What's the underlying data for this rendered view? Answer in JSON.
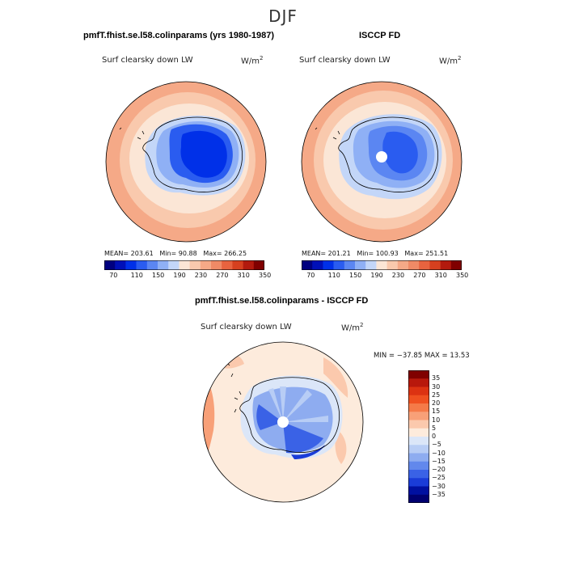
{
  "season": "DJF",
  "panels": [
    {
      "title": "pmfT.fhist.se.l58.colinparams (yrs 1980-1987)",
      "variable": "Surf clearsky down LW",
      "units": "W/m",
      "units_exp": "2",
      "stats": {
        "mean_label": "MEAN=",
        "mean": "203.61",
        "min_label": "Min=",
        "min": "90.88",
        "max_label": "Max=",
        "max": "266.25"
      },
      "colorbar_ticks": [
        "70",
        "110",
        "150",
        "190",
        "230",
        "270",
        "310",
        "350"
      ]
    },
    {
      "title": "ISCCP FD",
      "variable": "Surf clearsky down LW",
      "units": "W/m",
      "units_exp": "2",
      "stats": {
        "mean_label": "MEAN=",
        "mean": "201.21",
        "min_label": "Min=",
        "min": "100.93",
        "max_label": "Max=",
        "max": "251.51"
      },
      "colorbar_ticks": [
        "70",
        "110",
        "150",
        "190",
        "230",
        "270",
        "310",
        "350"
      ]
    }
  ],
  "diff": {
    "title": "pmfT.fhist.se.l58.colinparams - ISCCP FD",
    "variable": "Surf clearsky down LW",
    "units": "W/m",
    "units_exp": "2",
    "minmax": "MIN = −37.85  MAX =  13.53",
    "levels": [
      "35",
      "30",
      "25",
      "20",
      "15",
      "10",
      "5",
      "0",
      "−5",
      "−10",
      "−15",
      "−20",
      "−25",
      "−30",
      "−35"
    ]
  },
  "colors": {
    "abs_scale": [
      "#000080",
      "#0010b8",
      "#0030e8",
      "#2a5cf0",
      "#5b86f2",
      "#8fb0f5",
      "#c3d6f8",
      "#fbe6d6",
      "#f9c9ad",
      "#f5a987",
      "#f08a66",
      "#e8633f",
      "#d6401f",
      "#b21a0e",
      "#800000"
    ],
    "diff_scale": [
      "#800000",
      "#b8180c",
      "#dc3212",
      "#ef5020",
      "#f57a48",
      "#f8a078",
      "#fbc9ad",
      "#fdebdc",
      "#dbe6f8",
      "#b8cdf5",
      "#8eacf0",
      "#6288ec",
      "#3a62e6",
      "#1a3cd8",
      "#0010a0",
      "#000070"
    ],
    "map_ocean_outer": "#f5a987",
    "map_ocean_mid": "#f9c9ad",
    "map_ocean_inner": "#fbe6d6",
    "map_ice_edge": "#c3d6f8",
    "map_ice_mid": "#5b86f2",
    "map_ice_core": "#0030e8"
  }
}
